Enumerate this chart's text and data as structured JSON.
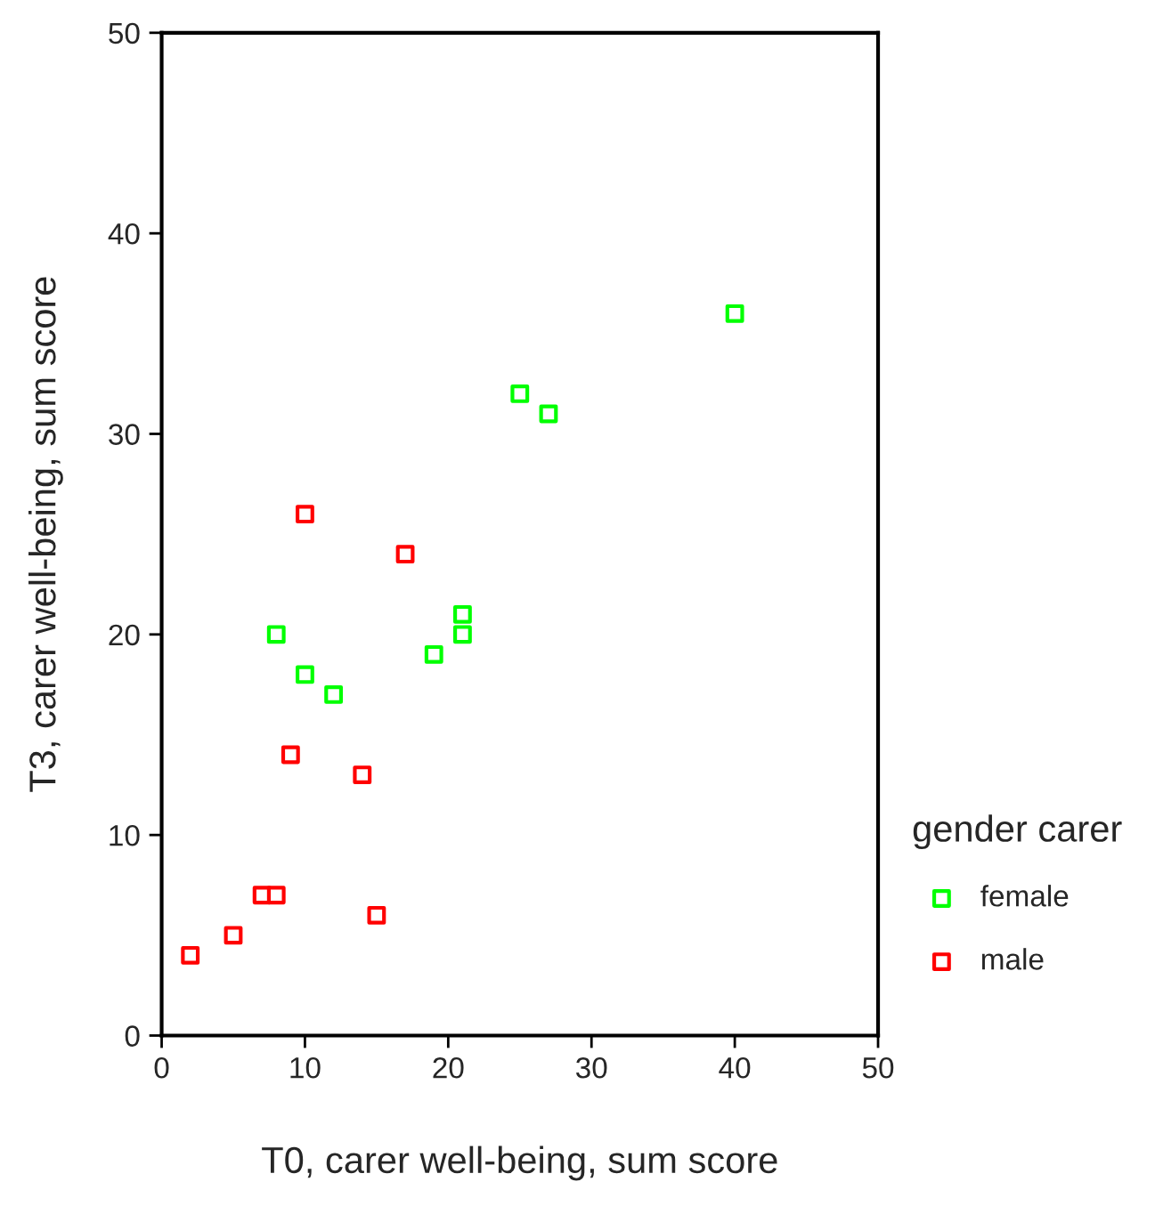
{
  "chart_data": {
    "type": "scatter",
    "xlabel": "T0, carer well-being, sum score",
    "ylabel": "T3, carer well-being, sum score",
    "legend_title": "gender carer",
    "series": [
      {
        "name": "female",
        "color": "#00ff00",
        "x": [
          40,
          25,
          27,
          21,
          21,
          8,
          19,
          10,
          12
        ],
        "values": [
          36,
          32,
          31,
          21,
          20,
          20,
          19,
          18,
          17
        ]
      },
      {
        "name": "male",
        "color": "#ff0000",
        "x": [
          10,
          17,
          9,
          14,
          7,
          8,
          15,
          5,
          2
        ],
        "values": [
          26,
          24,
          14,
          13,
          7,
          7,
          6,
          5,
          4
        ]
      }
    ],
    "xlim": [
      0,
      50
    ],
    "ylim": [
      0,
      50
    ],
    "xticks": [
      0,
      10,
      20,
      30,
      40,
      50
    ],
    "yticks": [
      0,
      10,
      20,
      30,
      40,
      50
    ],
    "marker": "square",
    "grid": false,
    "legend": "right"
  }
}
